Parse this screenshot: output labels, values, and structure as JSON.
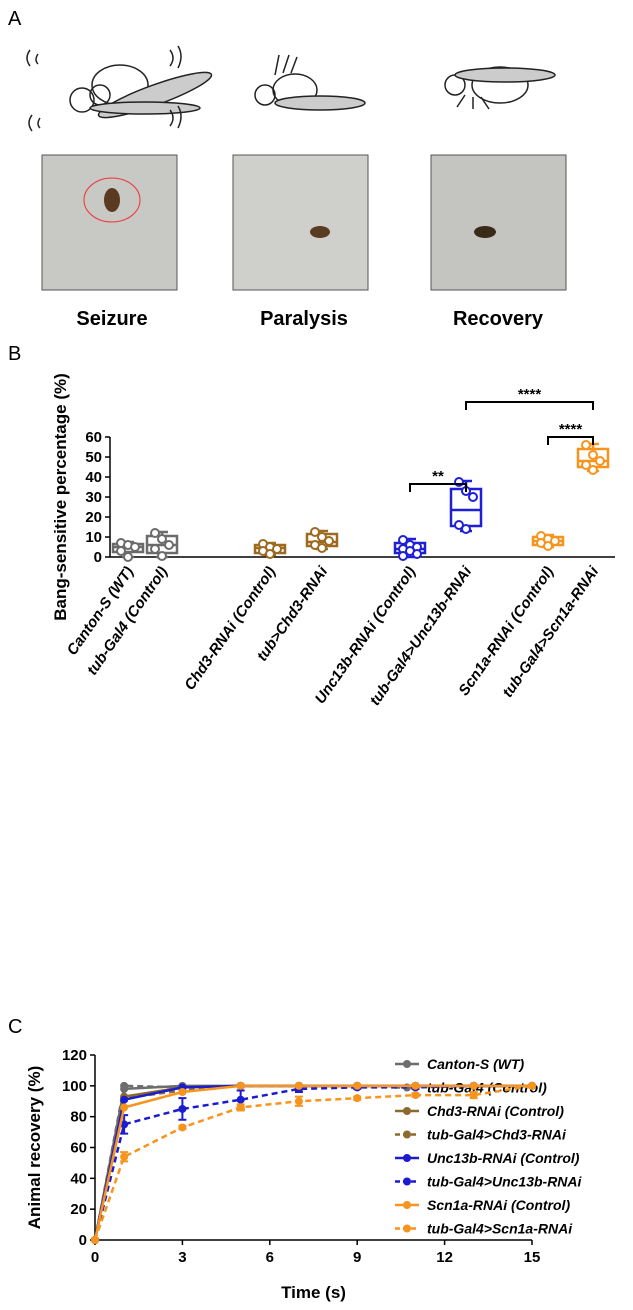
{
  "panel_a": {
    "label": "A",
    "stages": [
      "Seizure",
      "Paralysis",
      "Recovery"
    ]
  },
  "chart_data": [
    {
      "panel_label": "B",
      "type": "box",
      "y_label": "Bang-sensitive percentage (%)",
      "categories": [
        "Canton-S (WT)",
        "tub-Gal4 (Control)",
        "Chd3-RNAi (Control)",
        "tub>Chd3-RNAi",
        "Unc13b-RNAi (Control)",
        "tub-Gal4>Unc13b-RNAi",
        "Scn1a-RNAi (Control)",
        "tub-Gal4>Scn1a-RNAi"
      ],
      "colors": [
        "#6b6b6b",
        "#6b6b6b",
        "#9c6b21",
        "#9c6b21",
        "#1f1fd6",
        "#1f1fd6",
        "#f7941d",
        "#f7941d"
      ],
      "boxes": [
        {
          "min": 0,
          "q1": 2.5,
          "median": 5,
          "q3": 6.5,
          "max": 7.5,
          "points": [
            7,
            6,
            5,
            3,
            0
          ]
        },
        {
          "min": 0,
          "q1": 2,
          "median": 6,
          "q3": 10.5,
          "max": 12.5,
          "points": [
            12,
            9,
            6,
            4,
            0.5
          ]
        },
        {
          "min": 1,
          "q1": 2,
          "median": 4.5,
          "q3": 6,
          "max": 7,
          "points": [
            6.5,
            5,
            4,
            3,
            1.5
          ]
        },
        {
          "min": 4,
          "q1": 5.5,
          "median": 7.5,
          "q3": 11.5,
          "max": 13,
          "points": [
            12.5,
            10,
            8,
            6,
            4.5
          ]
        },
        {
          "min": 0,
          "q1": 2,
          "median": 4,
          "q3": 7,
          "max": 9,
          "points": [
            8.5,
            6,
            5,
            4,
            3,
            1.5,
            0.5
          ]
        },
        {
          "min": 13,
          "q1": 15.5,
          "median": 23.5,
          "q3": 34,
          "max": 38,
          "points": [
            37.5,
            33,
            30,
            16,
            14
          ]
        },
        {
          "min": 5,
          "q1": 6,
          "median": 8,
          "q3": 10,
          "max": 11,
          "points": [
            10.5,
            9,
            8,
            7,
            5.5
          ]
        },
        {
          "min": 43,
          "q1": 45,
          "median": 48,
          "q3": 54,
          "max": 56.5,
          "points": [
            56,
            51,
            48,
            46,
            43.5
          ]
        }
      ],
      "ylim": [
        0,
        60
      ],
      "yticks": [
        0,
        10,
        20,
        30,
        40,
        50,
        60
      ],
      "significance": [
        {
          "text": "**",
          "pair": [
            4,
            5
          ]
        },
        {
          "text": "****",
          "pair": [
            6,
            7
          ]
        },
        {
          "text": "****",
          "pair": [
            5,
            7
          ]
        }
      ]
    },
    {
      "panel_label": "C",
      "type": "line",
      "x_label": "Time (s)",
      "y_label": "Animal recovery (%)",
      "x": [
        0,
        1,
        3,
        5,
        7,
        9,
        11,
        13,
        15
      ],
      "xlim": [
        0,
        15
      ],
      "xticks": [
        0,
        3,
        6,
        9,
        12,
        15
      ],
      "ylim": [
        0,
        120
      ],
      "yticks": [
        0,
        20,
        40,
        60,
        80,
        100,
        120
      ],
      "legend": "right",
      "series": [
        {
          "name": "Canton-S (WT)",
          "color": "#6d6d6d",
          "dash": false,
          "values": [
            0,
            98,
            100,
            100,
            100,
            100,
            100,
            100,
            100
          ]
        },
        {
          "name": "tub-Gal4 (Control)",
          "color": "#6d6d6d",
          "dash": true,
          "values": [
            0,
            100,
            99,
            100,
            100,
            100,
            100,
            100,
            100
          ]
        },
        {
          "name": "Chd3-RNAi (Control)",
          "color": "#8c6a2e",
          "dash": false,
          "values": [
            0,
            93,
            99,
            100,
            100,
            100,
            100,
            100,
            100
          ]
        },
        {
          "name": "tub-Gal4>Chd3-RNAi",
          "color": "#8c6a2e",
          "dash": true,
          "values": [
            0,
            92,
            97,
            100,
            100,
            100,
            100,
            100,
            100
          ]
        },
        {
          "name": "Unc13b-RNAi (Control)",
          "color": "#1c1ccf",
          "dash": false,
          "values": [
            0,
            91,
            99,
            100,
            100,
            100,
            100,
            100,
            100
          ]
        },
        {
          "name": "tub-Gal4>Unc13b-RNAi",
          "color": "#1c1ccf",
          "dash": true,
          "values": [
            0,
            75,
            85,
            91,
            98,
            99,
            99,
            100,
            100
          ],
          "errors": [
            0,
            6,
            7,
            6,
            2,
            1,
            1,
            0,
            0
          ]
        },
        {
          "name": "Scn1a-RNAi (Control)",
          "color": "#f7941d",
          "dash": false,
          "values": [
            0,
            86,
            96,
            100,
            100,
            100,
            100,
            100,
            100
          ]
        },
        {
          "name": "tub-Gal4>Scn1a-RNAi",
          "color": "#f7941d",
          "dash": true,
          "values": [
            0,
            54,
            73,
            86,
            90,
            92,
            94,
            94,
            100
          ],
          "errors": [
            0,
            3,
            1,
            2,
            3,
            1,
            1,
            2,
            0
          ]
        }
      ]
    }
  ]
}
